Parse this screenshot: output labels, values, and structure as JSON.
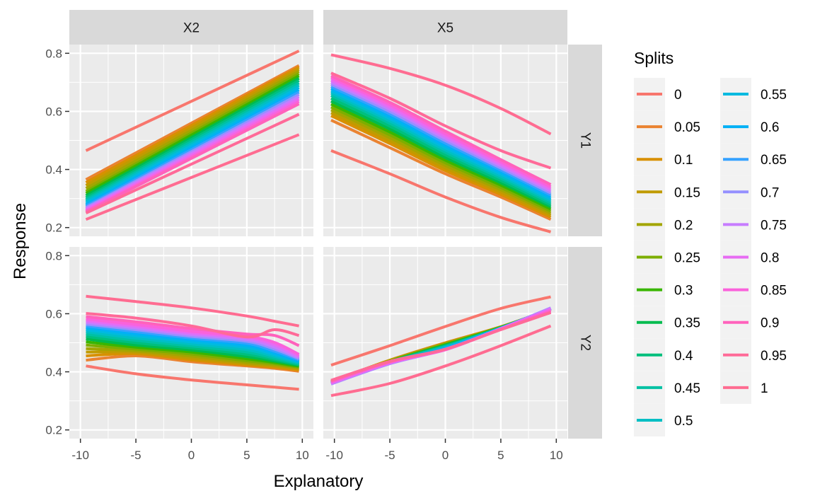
{
  "chart_data": {
    "type": "line",
    "facets": {
      "columns": [
        "X2",
        "X5"
      ],
      "rows": [
        "Y1",
        "Y2"
      ]
    },
    "xlabel": "Explanatory",
    "ylabel": "Response",
    "xlim": [
      -11,
      11
    ],
    "ylim": [
      0.17,
      0.83
    ],
    "x_ticks": [
      -10,
      -5,
      0,
      5,
      10
    ],
    "y_ticks": [
      0.2,
      0.4,
      0.6,
      0.8
    ],
    "x_tick_labels": [
      "-10",
      "-5",
      "0",
      "5",
      "10"
    ],
    "y_tick_labels": [
      "0.2",
      "0.4",
      "0.6",
      "0.8"
    ],
    "grid": true,
    "legend": {
      "title": "Splits",
      "placement": "right",
      "entries": [
        "0",
        "0.05",
        "0.1",
        "0.15",
        "0.2",
        "0.25",
        "0.3",
        "0.35",
        "0.4",
        "0.45",
        "0.5",
        "0.55",
        "0.6",
        "0.65",
        "0.7",
        "0.75",
        "0.8",
        "0.85",
        "0.9",
        "0.95",
        "1"
      ],
      "colors": [
        "#F8766D",
        "#EA8331",
        "#D89000",
        "#C09B00",
        "#A3A500",
        "#7CAE00",
        "#39B600",
        "#00BB4E",
        "#00BF7D",
        "#00C1A3",
        "#00BFC4",
        "#00BAE0",
        "#00B0F6",
        "#35A2FF",
        "#9590FF",
        "#C77CFF",
        "#E76BF3",
        "#FA62DB",
        "#FF62BC",
        "#FF6A98",
        "#FF6C91"
      ]
    },
    "panels": [
      {
        "col": "X2",
        "row": "Y1",
        "x": [
          -9.5,
          9.7
        ],
        "series": [
          {
            "name": "0",
            "y": [
              0.465,
              0.808
            ]
          },
          {
            "name": "0.05",
            "y": [
              0.365,
              0.758
            ]
          },
          {
            "name": "0.1",
            "y": [
              0.355,
              0.752
            ]
          },
          {
            "name": "0.15",
            "y": [
              0.345,
              0.745
            ]
          },
          {
            "name": "0.2",
            "y": [
              0.335,
              0.738
            ]
          },
          {
            "name": "0.25",
            "y": [
              0.325,
              0.73
            ]
          },
          {
            "name": "0.3",
            "y": [
              0.318,
              0.722
            ]
          },
          {
            "name": "0.35",
            "y": [
              0.31,
              0.714
            ]
          },
          {
            "name": "0.4",
            "y": [
              0.303,
              0.706
            ]
          },
          {
            "name": "0.45",
            "y": [
              0.297,
              0.698
            ]
          },
          {
            "name": "0.5",
            "y": [
              0.291,
              0.69
            ]
          },
          {
            "name": "0.55",
            "y": [
              0.285,
              0.682
            ]
          },
          {
            "name": "0.6",
            "y": [
              0.279,
              0.674
            ]
          },
          {
            "name": "0.65",
            "y": [
              0.274,
              0.666
            ]
          },
          {
            "name": "0.7",
            "y": [
              0.269,
              0.658
            ]
          },
          {
            "name": "0.75",
            "y": [
              0.265,
              0.65
            ]
          },
          {
            "name": "0.8",
            "y": [
              0.261,
              0.642
            ]
          },
          {
            "name": "0.85",
            "y": [
              0.257,
              0.634
            ]
          },
          {
            "name": "0.9",
            "y": [
              0.254,
              0.626
            ]
          },
          {
            "name": "0.95",
            "y": [
              0.25,
              0.59
            ]
          },
          {
            "name": "1",
            "y": [
              0.228,
              0.52
            ]
          }
        ]
      },
      {
        "col": "X5",
        "row": "Y1",
        "x": [
          -10.3,
          -5,
          0,
          5,
          9.5
        ],
        "series": [
          {
            "name": "0",
            "y": [
              0.465,
              0.385,
              0.305,
              0.235,
              0.185
            ]
          },
          {
            "name": "0.05",
            "y": [
              0.57,
              0.475,
              0.385,
              0.305,
              0.228
            ]
          },
          {
            "name": "0.1",
            "y": [
              0.585,
              0.489,
              0.396,
              0.314,
              0.236
            ]
          },
          {
            "name": "0.15",
            "y": [
              0.595,
              0.499,
              0.405,
              0.322,
              0.243
            ]
          },
          {
            "name": "0.2",
            "y": [
              0.605,
              0.509,
              0.414,
              0.33,
              0.25
            ]
          },
          {
            "name": "0.25",
            "y": [
              0.615,
              0.519,
              0.423,
              0.338,
              0.257
            ]
          },
          {
            "name": "0.3",
            "y": [
              0.625,
              0.529,
              0.432,
              0.346,
              0.264
            ]
          },
          {
            "name": "0.35",
            "y": [
              0.635,
              0.539,
              0.441,
              0.354,
              0.271
            ]
          },
          {
            "name": "0.4",
            "y": [
              0.645,
              0.549,
              0.45,
              0.362,
              0.278
            ]
          },
          {
            "name": "0.45",
            "y": [
              0.655,
              0.559,
              0.459,
              0.37,
              0.285
            ]
          },
          {
            "name": "0.5",
            "y": [
              0.663,
              0.567,
              0.467,
              0.377,
              0.292
            ]
          },
          {
            "name": "0.55",
            "y": [
              0.67,
              0.575,
              0.475,
              0.384,
              0.298
            ]
          },
          {
            "name": "0.6",
            "y": [
              0.678,
              0.583,
              0.483,
              0.391,
              0.305
            ]
          },
          {
            "name": "0.65",
            "y": [
              0.685,
              0.591,
              0.491,
              0.398,
              0.312
            ]
          },
          {
            "name": "0.7",
            "y": [
              0.693,
              0.599,
              0.499,
              0.405,
              0.319
            ]
          },
          {
            "name": "0.75",
            "y": [
              0.7,
              0.607,
              0.507,
              0.412,
              0.326
            ]
          },
          {
            "name": "0.8",
            "y": [
              0.707,
              0.615,
              0.515,
              0.419,
              0.333
            ]
          },
          {
            "name": "0.85",
            "y": [
              0.715,
              0.623,
              0.523,
              0.426,
              0.34
            ]
          },
          {
            "name": "0.9",
            "y": [
              0.722,
              0.631,
              0.532,
              0.434,
              0.348
            ]
          },
          {
            "name": "0.95",
            "y": [
              0.732,
              0.645,
              0.55,
              0.465,
              0.405
            ]
          },
          {
            "name": "1",
            "y": [
              0.795,
              0.748,
              0.69,
              0.61,
              0.522
            ]
          }
        ]
      },
      {
        "col": "X2",
        "row": "Y2",
        "x": [
          -9.5,
          -5,
          0,
          5,
          7.5,
          9.7
        ],
        "series": [
          {
            "name": "0",
            "y": [
              0.42,
              0.393,
              0.372,
              0.355,
              0.347,
              0.34
            ]
          },
          {
            "name": "0.05",
            "y": [
              0.44,
              0.455,
              0.435,
              0.42,
              0.412,
              0.402
            ]
          },
          {
            "name": "0.1",
            "y": [
              0.455,
              0.462,
              0.441,
              0.424,
              0.416,
              0.406
            ]
          },
          {
            "name": "0.15",
            "y": [
              0.468,
              0.467,
              0.447,
              0.428,
              0.42,
              0.41
            ]
          },
          {
            "name": "0.2",
            "y": [
              0.48,
              0.472,
              0.454,
              0.432,
              0.424,
              0.413
            ]
          },
          {
            "name": "0.25",
            "y": [
              0.492,
              0.478,
              0.461,
              0.438,
              0.428,
              0.416
            ]
          },
          {
            "name": "0.3",
            "y": [
              0.503,
              0.485,
              0.468,
              0.445,
              0.432,
              0.419
            ]
          },
          {
            "name": "0.35",
            "y": [
              0.513,
              0.492,
              0.475,
              0.452,
              0.437,
              0.422
            ]
          },
          {
            "name": "0.4",
            "y": [
              0.522,
              0.5,
              0.482,
              0.46,
              0.442,
              0.425
            ]
          },
          {
            "name": "0.45",
            "y": [
              0.53,
              0.508,
              0.489,
              0.468,
              0.447,
              0.428
            ]
          },
          {
            "name": "0.5",
            "y": [
              0.538,
              0.516,
              0.496,
              0.476,
              0.453,
              0.431
            ]
          },
          {
            "name": "0.55",
            "y": [
              0.545,
              0.524,
              0.503,
              0.484,
              0.459,
              0.434
            ]
          },
          {
            "name": "0.6",
            "y": [
              0.552,
              0.531,
              0.51,
              0.491,
              0.465,
              0.437
            ]
          },
          {
            "name": "0.65",
            "y": [
              0.558,
              0.538,
              0.516,
              0.498,
              0.471,
              0.441
            ]
          },
          {
            "name": "0.7",
            "y": [
              0.564,
              0.545,
              0.522,
              0.505,
              0.478,
              0.445
            ]
          },
          {
            "name": "0.75",
            "y": [
              0.57,
              0.551,
              0.528,
              0.511,
              0.485,
              0.449
            ]
          },
          {
            "name": "0.8",
            "y": [
              0.576,
              0.557,
              0.534,
              0.517,
              0.493,
              0.454
            ]
          },
          {
            "name": "0.85",
            "y": [
              0.582,
              0.563,
              0.54,
              0.522,
              0.501,
              0.46
            ]
          },
          {
            "name": "0.9",
            "y": [
              0.59,
              0.572,
              0.549,
              0.53,
              0.525,
              0.49
            ]
          },
          {
            "name": "0.95",
            "y": [
              0.601,
              0.585,
              0.558,
              0.52,
              0.545,
              0.525
            ]
          },
          {
            "name": "1",
            "y": [
              0.66,
              0.642,
              0.62,
              0.592,
              0.574,
              0.558
            ]
          }
        ]
      },
      {
        "col": "X5",
        "row": "Y2",
        "x": [
          -10.3,
          -5,
          0,
          5,
          9.5
        ],
        "series": [
          {
            "name": "0",
            "y": [
              0.423,
              0.49,
              0.556,
              0.618,
              0.658
            ]
          },
          {
            "name": "0.05",
            "y": [
              0.367,
              0.44,
              0.5,
              0.555,
              0.615
            ]
          },
          {
            "name": "0.1",
            "y": [
              0.366,
              0.44,
              0.499,
              0.555,
              0.615
            ]
          },
          {
            "name": "0.15",
            "y": [
              0.366,
              0.439,
              0.498,
              0.554,
              0.616
            ]
          },
          {
            "name": "0.2",
            "y": [
              0.365,
              0.438,
              0.497,
              0.554,
              0.616
            ]
          },
          {
            "name": "0.25",
            "y": [
              0.364,
              0.437,
              0.495,
              0.553,
              0.616
            ]
          },
          {
            "name": "0.3",
            "y": [
              0.364,
              0.436,
              0.493,
              0.553,
              0.617
            ]
          },
          {
            "name": "0.35",
            "y": [
              0.363,
              0.435,
              0.491,
              0.552,
              0.617
            ]
          },
          {
            "name": "0.4",
            "y": [
              0.362,
              0.434,
              0.489,
              0.552,
              0.617
            ]
          },
          {
            "name": "0.45",
            "y": [
              0.362,
              0.433,
              0.487,
              0.551,
              0.618
            ]
          },
          {
            "name": "0.5",
            "y": [
              0.361,
              0.432,
              0.485,
              0.551,
              0.618
            ]
          },
          {
            "name": "0.55",
            "y": [
              0.36,
              0.431,
              0.483,
              0.55,
              0.618
            ]
          },
          {
            "name": "0.6",
            "y": [
              0.36,
              0.43,
              0.481,
              0.55,
              0.619
            ]
          },
          {
            "name": "0.65",
            "y": [
              0.359,
              0.429,
              0.479,
              0.549,
              0.619
            ]
          },
          {
            "name": "0.7",
            "y": [
              0.358,
              0.428,
              0.477,
              0.549,
              0.62
            ]
          },
          {
            "name": "0.75",
            "y": [
              0.359,
              0.429,
              0.477,
              0.549,
              0.619
            ]
          },
          {
            "name": "0.8",
            "y": [
              0.362,
              0.431,
              0.476,
              0.548,
              0.615
            ]
          },
          {
            "name": "0.85",
            "y": [
              0.365,
              0.433,
              0.476,
              0.547,
              0.611
            ]
          },
          {
            "name": "0.9",
            "y": [
              0.368,
              0.435,
              0.477,
              0.546,
              0.607
            ]
          },
          {
            "name": "0.95",
            "y": [
              0.371,
              0.436,
              0.478,
              0.545,
              0.604
            ]
          },
          {
            "name": "1",
            "y": [
              0.318,
              0.36,
              0.42,
              0.49,
              0.558
            ]
          }
        ]
      }
    ]
  }
}
